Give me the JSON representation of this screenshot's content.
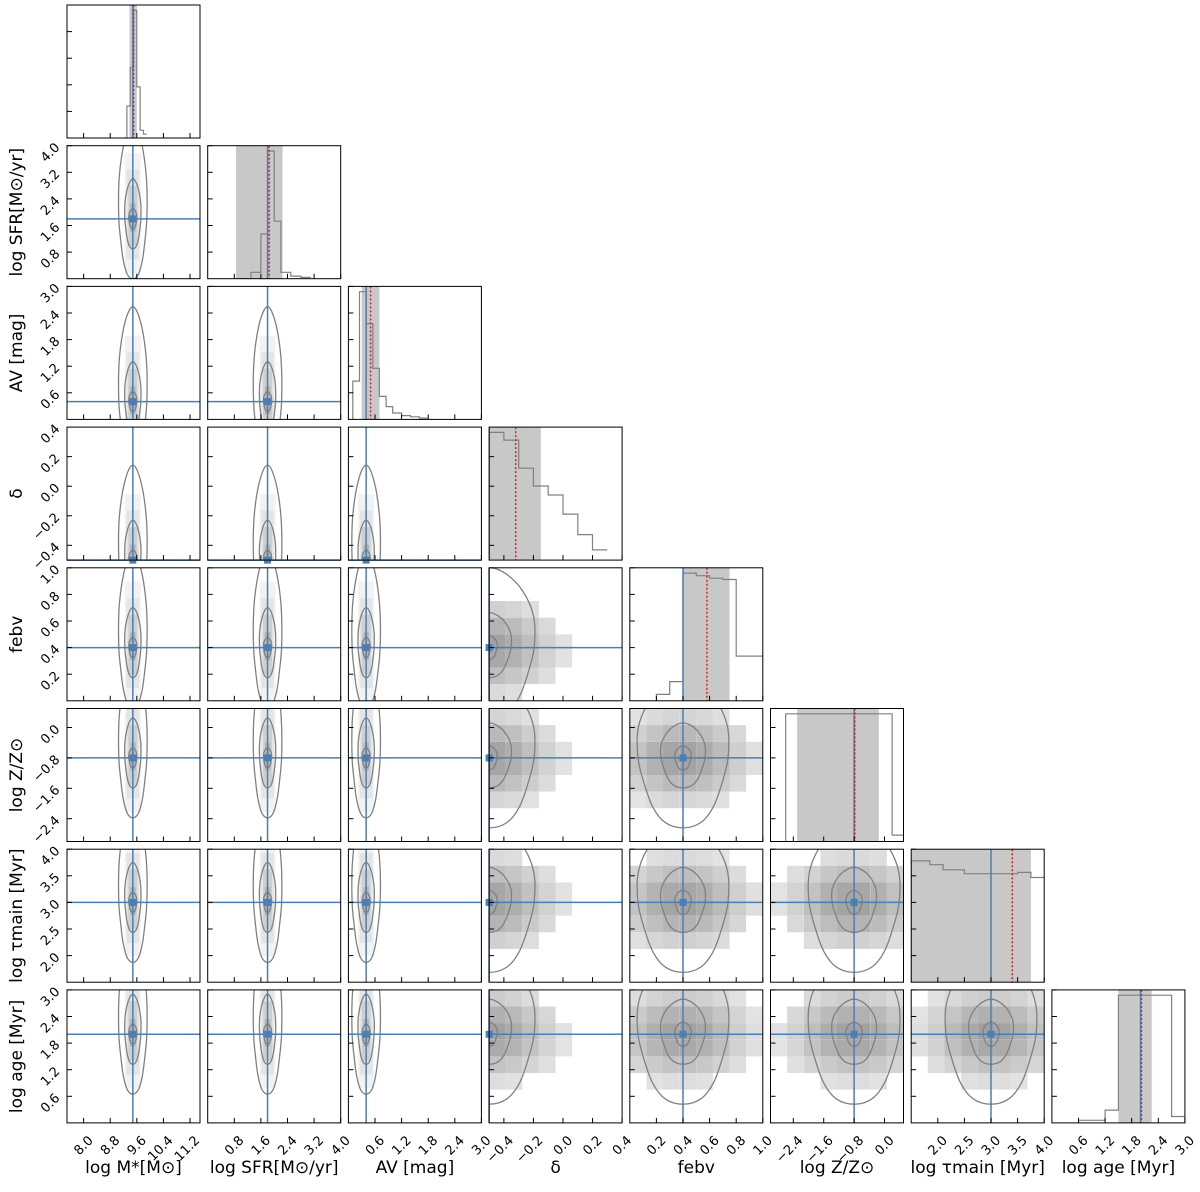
{
  "chart_data": {
    "type": "corner",
    "parameters": [
      {
        "label": "log M*[M⊙]",
        "range": [
          7.5,
          11.5
        ],
        "ticks": [
          "8.0",
          "8.8",
          "9.6",
          "10.4",
          "11.2"
        ],
        "truth": 9.48,
        "median": 9.5,
        "ci": [
          9.38,
          9.6
        ]
      },
      {
        "label": "log SFR[M⊙/yr]",
        "range": [
          0.0,
          4.0
        ],
        "ticks": [
          "0.8",
          "1.6",
          "2.4",
          "3.2",
          "4.0"
        ],
        "truth": 1.8,
        "median": 1.85,
        "ci": [
          0.85,
          2.25
        ]
      },
      {
        "label": "AV [mag]",
        "range": [
          0.0,
          3.0
        ],
        "ticks": [
          "0.6",
          "1.2",
          "1.8",
          "2.4",
          "3.0"
        ],
        "truth": 0.4,
        "median": 0.5,
        "ci": [
          0.3,
          0.7
        ]
      },
      {
        "label": "δ",
        "range": [
          -0.5,
          0.4
        ],
        "ticks": [
          "−0.4",
          "−0.2",
          "0.0",
          "0.2",
          "0.4"
        ],
        "truth": -0.5,
        "median": -0.32,
        "ci": [
          -0.5,
          -0.15
        ]
      },
      {
        "label": "febv",
        "range": [
          0.0,
          1.0
        ],
        "ticks": [
          "0.2",
          "0.4",
          "0.6",
          "0.8",
          "1.0"
        ],
        "truth": 0.4,
        "median": 0.58,
        "ci": [
          0.4,
          0.75
        ]
      },
      {
        "label": "log Z/Z⊙",
        "range": [
          -3.0,
          0.5
        ],
        "ticks": [
          "−2.4",
          "−1.6",
          "−0.8",
          "0.0"
        ],
        "truth": -0.8,
        "median": -0.78,
        "ci": [
          -2.3,
          -0.15
        ]
      },
      {
        "label": "log τmain [Myr]",
        "range": [
          1.5,
          4.0
        ],
        "ticks": [
          "2.0",
          "2.5",
          "3.0",
          "3.5",
          "4.0"
        ],
        "truth": 3.0,
        "median": 3.4,
        "ci": [
          1.5,
          3.75
        ]
      },
      {
        "label": "log age [Myr]",
        "range": [
          0.0,
          3.0
        ],
        "ticks": [
          "0.6",
          "1.2",
          "1.8",
          "2.4",
          "3.0"
        ],
        "truth": 2.0,
        "median": 2.02,
        "ci": [
          1.5,
          2.25
        ]
      }
    ],
    "y_tick_labels": {
      "1": [
        "0.8",
        "1.6",
        "2.4",
        "3.2",
        "4.0"
      ],
      "2": [
        "0.6",
        "1.2",
        "1.8",
        "2.4",
        "3.0"
      ],
      "3": [
        "−0.4",
        "−0.2",
        "0.0",
        "0.2",
        "0.4"
      ],
      "4": [
        "0.2",
        "0.4",
        "0.6",
        "0.8",
        "1.0"
      ],
      "5": [
        "−2.4",
        "−1.6",
        "−0.8",
        "0.0"
      ],
      "6": [
        "2.0",
        "2.5",
        "3.0",
        "3.5",
        "4.0"
      ],
      "7": [
        "0.6",
        "1.2",
        "1.8",
        "2.4",
        "3.0"
      ]
    },
    "histograms": [
      {
        "bins": [
          9.2,
          9.3,
          9.4,
          9.5,
          9.6,
          9.7,
          9.8,
          9.9
        ],
        "counts": [
          0.0,
          0.25,
          0.55,
          1.0,
          0.4,
          0.06,
          0.03
        ]
      },
      {
        "bins": [
          1.0,
          1.3,
          1.6,
          1.8,
          2.0,
          2.2,
          2.5,
          2.8,
          3.1
        ],
        "counts": [
          0.0,
          0.05,
          0.35,
          1.0,
          0.45,
          0.05,
          0.02,
          0.01
        ]
      },
      {
        "bins": [
          0.1,
          0.25,
          0.4,
          0.55,
          0.7,
          0.85,
          1.0,
          1.2,
          1.4,
          1.6,
          1.8
        ],
        "counts": [
          0.3,
          1.0,
          0.75,
          0.4,
          0.18,
          0.1,
          0.05,
          0.03,
          0.02,
          0.01
        ]
      },
      {
        "bins": [
          -0.5,
          -0.4,
          -0.3,
          -0.2,
          -0.1,
          0.0,
          0.1,
          0.2,
          0.3
        ],
        "counts": [
          1.0,
          0.94,
          0.72,
          0.58,
          0.51,
          0.36,
          0.2,
          0.08
        ]
      },
      {
        "bins": [
          0.2,
          0.3,
          0.4,
          0.5,
          0.6,
          0.7,
          0.8,
          1.0
        ],
        "counts": [
          0.05,
          0.15,
          1.0,
          0.98,
          0.96,
          0.95,
          0.35
        ]
      },
      {
        "bins": [
          -2.6,
          -2.2,
          -1.8,
          -1.4,
          -1.0,
          -0.6,
          -0.2,
          0.2,
          0.5
        ],
        "counts": [
          1.0,
          1.0,
          1.0,
          1.0,
          1.0,
          1.0,
          1.0,
          0.05
        ]
      },
      {
        "bins": [
          1.5,
          1.85,
          2.1,
          2.5,
          3.0,
          3.5,
          3.75,
          4.0
        ],
        "counts": [
          0.95,
          0.92,
          0.88,
          0.85,
          0.85,
          0.86,
          0.82
        ]
      },
      {
        "bins": [
          0.6,
          1.2,
          1.5,
          1.8,
          2.1,
          2.4,
          2.7,
          3.0
        ],
        "counts": [
          0.02,
          0.1,
          1.0,
          1.0,
          1.0,
          1.0,
          0.05
        ]
      }
    ],
    "legend": "none",
    "grid": false
  }
}
